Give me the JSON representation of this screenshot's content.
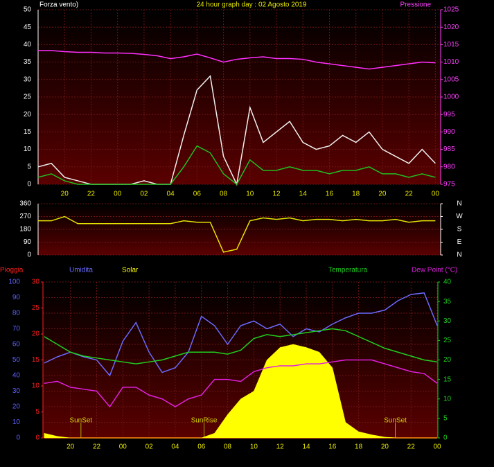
{
  "chart_data": [
    {
      "type": "line",
      "title": "24 hour graph day : 02 Agosto 2019",
      "y_label": "Forza vento)",
      "y2_label": "Pressione",
      "x": [
        18,
        19,
        20,
        21,
        22,
        23,
        24,
        25,
        26,
        27,
        28,
        29,
        30,
        31,
        32,
        33,
        34,
        35,
        36,
        37,
        38,
        39,
        40,
        41,
        42,
        43,
        44,
        45,
        46,
        47,
        48
      ],
      "xlim": [
        18,
        48.4
      ],
      "xticks": [
        {
          "value": 20,
          "label": "20"
        },
        {
          "value": 22,
          "label": "22"
        },
        {
          "value": 24,
          "label": "00"
        },
        {
          "value": 26,
          "label": "02"
        },
        {
          "value": 28,
          "label": "04"
        },
        {
          "value": 30,
          "label": "06"
        },
        {
          "value": 32,
          "label": "08"
        },
        {
          "value": 34,
          "label": "10"
        },
        {
          "value": 36,
          "label": "12"
        },
        {
          "value": 38,
          "label": "14"
        },
        {
          "value": 40,
          "label": "16"
        },
        {
          "value": 42,
          "label": "18"
        },
        {
          "value": 44,
          "label": "20"
        },
        {
          "value": 46,
          "label": "22"
        },
        {
          "value": 48,
          "label": "00"
        }
      ],
      "ylim": [
        0,
        50
      ],
      "yticks": [
        0,
        5,
        10,
        15,
        20,
        25,
        30,
        35,
        40,
        45,
        50
      ],
      "y2lim": [
        975,
        1025
      ],
      "y2ticks": [
        975,
        980,
        985,
        990,
        995,
        1000,
        1005,
        1010,
        1015,
        1020,
        1025
      ],
      "grid": true,
      "y_color": "#ffffff",
      "y2_color": "#ff40ff",
      "x_color": "#e6e600",
      "series": [
        {
          "color": "#f0f0f0",
          "values": [
            5,
            6,
            2,
            1,
            0,
            0,
            0,
            0,
            1,
            0,
            0,
            14,
            27,
            31,
            8,
            0,
            22,
            12,
            15,
            18,
            12,
            10,
            11,
            14,
            12,
            15,
            10,
            8,
            6,
            10,
            6
          ]
        },
        {
          "color": "#20c020",
          "values": [
            2,
            3,
            1,
            0,
            0,
            0,
            0,
            0,
            0,
            0,
            0,
            5,
            11,
            9,
            3,
            0,
            7,
            4,
            4,
            5,
            4,
            4,
            3,
            4,
            4,
            5,
            3,
            3,
            2,
            3,
            2
          ]
        },
        {
          "color": "#ff30ff",
          "axis": "y2",
          "values": [
            1013.3,
            1013.3,
            1013,
            1012.8,
            1012.8,
            1012.6,
            1012.6,
            1012.5,
            1012.2,
            1011.8,
            1011,
            1011.5,
            1012.3,
            1011.2,
            1010,
            1010.8,
            1011.2,
            1011.5,
            1011,
            1011,
            1010.8,
            1010,
            1009.5,
            1009,
            1008.5,
            1008,
            1008.5,
            1009,
            1009.5,
            1010,
            1009.8
          ]
        }
      ]
    },
    {
      "type": "line",
      "x": [
        18,
        19,
        20,
        21,
        22,
        23,
        24,
        25,
        26,
        27,
        28,
        29,
        30,
        31,
        32,
        33,
        34,
        35,
        36,
        37,
        38,
        39,
        40,
        41,
        42,
        43,
        44,
        45,
        46,
        47,
        48
      ],
      "xlim": [
        18,
        48.4
      ],
      "ylim": [
        0,
        360
      ],
      "yticks": [
        0,
        90,
        180,
        270,
        360
      ],
      "y2lim": [
        0,
        360
      ],
      "y2ticks": [
        {
          "value": 360,
          "label": "N"
        },
        {
          "value": 270,
          "label": "W"
        },
        {
          "value": 180,
          "label": "S"
        },
        {
          "value": 90,
          "label": "E"
        },
        {
          "value": 0,
          "label": "N"
        }
      ],
      "grid": true,
      "y_color": "#ffffff",
      "y2_color": "#ffffff",
      "series": [
        {
          "color": "#e6e600",
          "values": [
            240,
            240,
            270,
            220,
            220,
            220,
            220,
            220,
            220,
            220,
            220,
            240,
            230,
            230,
            20,
            40,
            240,
            260,
            250,
            260,
            240,
            250,
            250,
            240,
            250,
            240,
            240,
            250,
            230,
            240,
            240
          ]
        }
      ]
    },
    {
      "type": "line",
      "x": [
        18,
        19,
        20,
        21,
        22,
        23,
        24,
        25,
        26,
        27,
        28,
        29,
        30,
        31,
        32,
        33,
        34,
        35,
        36,
        37,
        38,
        39,
        40,
        41,
        42,
        43,
        44,
        45,
        46,
        47,
        48
      ],
      "xlim": [
        17.9,
        48.05
      ],
      "xticks": [
        {
          "value": 20,
          "label": "20"
        },
        {
          "value": 22,
          "label": "22"
        },
        {
          "value": 24,
          "label": "00"
        },
        {
          "value": 26,
          "label": "02"
        },
        {
          "value": 28,
          "label": "04"
        },
        {
          "value": 30,
          "label": "06"
        },
        {
          "value": 32,
          "label": "08"
        },
        {
          "value": 34,
          "label": "10"
        },
        {
          "value": 36,
          "label": "12"
        },
        {
          "value": 38,
          "label": "14"
        },
        {
          "value": 40,
          "label": "16"
        },
        {
          "value": 42,
          "label": "18"
        },
        {
          "value": 44,
          "label": "20"
        },
        {
          "value": 46,
          "label": "22"
        },
        {
          "value": 48,
          "label": "00"
        }
      ],
      "ylim": [
        0,
        100
      ],
      "yticks": [
        0,
        10,
        20,
        30,
        40,
        50,
        60,
        70,
        80,
        90,
        100
      ],
      "y3lim": [
        0,
        30
      ],
      "y3ticks": [
        0,
        5,
        10,
        15,
        20,
        25,
        30
      ],
      "y2lim": [
        0,
        40
      ],
      "y2ticks": [
        0,
        5,
        10,
        15,
        20,
        25,
        30,
        35,
        40
      ],
      "grid": true,
      "y_color": "#6060ff",
      "y3_color": "#ff2020",
      "y2_color": "#20d020",
      "x_color": "#e6e600",
      "annotations": [
        {
          "text": "SunSet",
          "x": 20.8
        },
        {
          "text": "SunRise",
          "x": 30.2
        },
        {
          "text": "SunSet",
          "x": 44.8
        }
      ],
      "series": [
        {
          "name": "Pioggia",
          "color": "#ff2020",
          "axis": "y3",
          "values": [
            0,
            0,
            0,
            0,
            0,
            0,
            0,
            0,
            0,
            0,
            0,
            0,
            0,
            0,
            0,
            0,
            0,
            0,
            0,
            0,
            0,
            0,
            0,
            0,
            0,
            0,
            0,
            0,
            0,
            0,
            0
          ]
        },
        {
          "name": "Umidita",
          "color": "#6a6aff",
          "values": [
            48,
            52,
            55,
            52,
            50,
            40,
            62,
            74,
            55,
            42,
            45,
            55,
            78,
            72,
            60,
            72,
            75,
            70,
            73,
            65,
            70,
            68,
            73,
            77,
            80,
            80,
            82,
            88,
            92,
            93,
            72
          ]
        },
        {
          "name": "Solar",
          "color": "#ffff00",
          "fill": true,
          "values": [
            3,
            1,
            0,
            0,
            0,
            0,
            0,
            0,
            0,
            0,
            0,
            0,
            0,
            3,
            15,
            25,
            30,
            50,
            58,
            60,
            58,
            55,
            45,
            10,
            4,
            2,
            0.5,
            0,
            0,
            0,
            0
          ]
        },
        {
          "name": "Temperatura",
          "color": "#20d020",
          "axis": "y2",
          "values": [
            26,
            24,
            22,
            21,
            20.5,
            20,
            19.5,
            19,
            19.5,
            20,
            21,
            22,
            22,
            22,
            21.5,
            22.5,
            25.5,
            26.5,
            26,
            26.5,
            27,
            27.5,
            28,
            27.5,
            26,
            24.5,
            23,
            22,
            21,
            20,
            19.5
          ]
        },
        {
          "name": "Dew Point (°C)",
          "color": "#e020e0",
          "axis": "y2",
          "values": [
            14,
            14.5,
            13,
            12.5,
            12,
            8,
            13,
            13,
            11,
            10,
            8,
            10,
            11,
            15,
            15,
            14.5,
            17,
            18,
            18.5,
            18.5,
            19,
            19,
            19.5,
            20,
            20,
            20,
            19,
            18,
            17,
            16.5,
            14
          ]
        }
      ]
    }
  ]
}
